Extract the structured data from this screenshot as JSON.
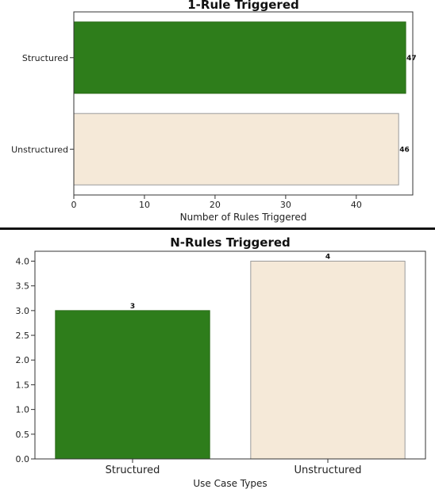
{
  "chart_data": [
    {
      "type": "bar",
      "orientation": "horizontal",
      "title": "1-Rule Triggered",
      "xlabel": "Number of Rules Triggered",
      "ylabel": "",
      "categories": [
        "Structured",
        "Unstructured"
      ],
      "values": [
        47,
        46
      ],
      "data_labels": [
        "47",
        "46"
      ],
      "colors": [
        "#2e7d1b",
        "#f5e9d8"
      ],
      "xlim": [
        0,
        48
      ],
      "xticks": [
        0,
        10,
        20,
        30,
        40
      ],
      "grid": false,
      "legend": "none"
    },
    {
      "type": "bar",
      "orientation": "vertical",
      "title": "N-Rules Triggered",
      "xlabel": "Use Case Types",
      "ylabel": "",
      "categories": [
        "Structured",
        "Unstructured"
      ],
      "values": [
        3,
        4
      ],
      "data_labels": [
        "3",
        "4"
      ],
      "colors": [
        "#2e7d1b",
        "#f5e9d8"
      ],
      "ylim": [
        0,
        4.2
      ],
      "yticks": [
        0.0,
        0.5,
        1.0,
        1.5,
        2.0,
        2.5,
        3.0,
        3.5,
        4.0
      ],
      "grid": false,
      "legend": "none"
    }
  ]
}
